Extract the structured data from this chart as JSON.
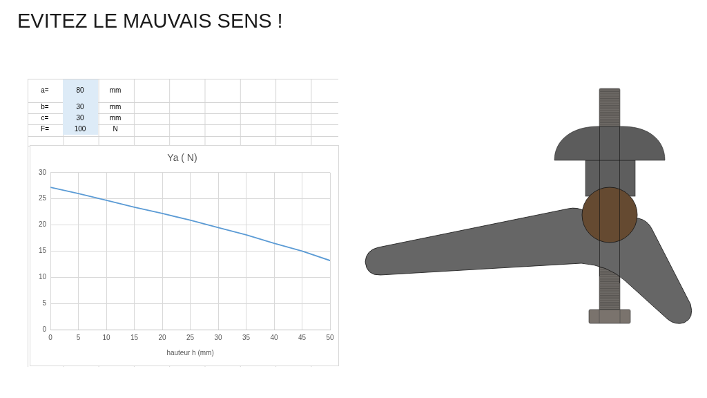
{
  "chart_data": {
    "type": "line",
    "title": "EVITEZ LE MAUVAIS SENS !",
    "subtitle": "Ya ( N)",
    "xlabel": "hauteur h (mm)",
    "x": [
      0,
      5,
      10,
      15,
      20,
      25,
      30,
      35,
      40,
      45,
      50
    ],
    "values": [
      27.2,
      26.0,
      24.7,
      23.4,
      22.2,
      20.9,
      19.5,
      18.1,
      16.5,
      15.0,
      13.2
    ],
    "color": "#5b9bd5",
    "marker": "none",
    "line_style": "solid",
    "xlim": [
      0,
      50
    ],
    "xticks": [
      0,
      5,
      10,
      15,
      20,
      25,
      30,
      35,
      40,
      45,
      50
    ],
    "ylim": [
      0,
      30
    ],
    "yticks": [
      0,
      5,
      10,
      15,
      20,
      25,
      30
    ],
    "grid": true,
    "annotations": [
      "a=",
      "80",
      "mm",
      "b=",
      "30",
      "mm",
      "c=",
      "30",
      "mm",
      "F=",
      "100",
      "N"
    ]
  }
}
